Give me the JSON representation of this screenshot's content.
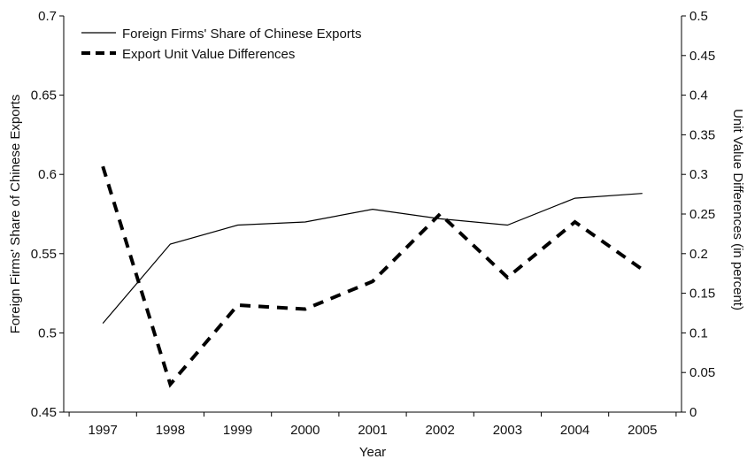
{
  "chart_data": {
    "type": "line",
    "x": [
      1997,
      1998,
      1999,
      2000,
      2001,
      2002,
      2003,
      2004,
      2005
    ],
    "xlabel": "Year",
    "y_left_label": "Foreign Firms' Share of Chinese Exports",
    "y_right_label": "Unit Value Differences (in percent)",
    "y_left_range": [
      0.45,
      0.7
    ],
    "y_left_ticks": [
      "0.45",
      "0.5",
      "0.55",
      "0.6",
      "0.65",
      "0.7"
    ],
    "y_right_range": [
      0,
      0.5
    ],
    "y_right_ticks": [
      "0",
      "0.05",
      "0.1",
      "0.15",
      "0.2",
      "0.25",
      "0.3",
      "0.35",
      "0.4",
      "0.45",
      "0.5"
    ],
    "grid": false,
    "legend_position": "top-left",
    "series": [
      {
        "name": "Foreign Firms' Share of Chinese Exports",
        "axis": "left",
        "line_style": "solid",
        "values": [
          0.506,
          0.556,
          0.568,
          0.57,
          0.578,
          0.572,
          0.568,
          0.585,
          0.588
        ]
      },
      {
        "name": "Export Unit Value Differences",
        "axis": "right",
        "line_style": "dashed",
        "values": [
          0.31,
          0.035,
          0.135,
          0.13,
          0.165,
          0.25,
          0.17,
          0.24,
          0.18
        ]
      }
    ]
  }
}
